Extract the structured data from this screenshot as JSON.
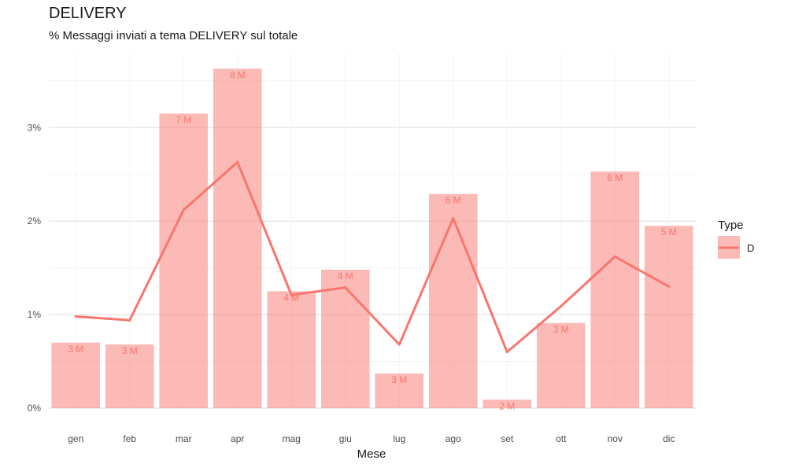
{
  "chart_data": {
    "type": "bar+line",
    "title": "DELIVERY",
    "subtitle": "% Messaggi inviati a tema DELIVERY sul totale",
    "xlabel": "Mese",
    "ylabel": "",
    "categories": [
      "gen",
      "feb",
      "mar",
      "apr",
      "mag",
      "giu",
      "lug",
      "ago",
      "set",
      "ott",
      "nov",
      "dic"
    ],
    "bars": {
      "name": "D",
      "values": [
        0.7,
        0.68,
        3.15,
        3.63,
        1.25,
        1.48,
        0.37,
        2.29,
        0.09,
        0.91,
        2.53,
        1.95
      ],
      "labels": [
        "3 M",
        "3 M",
        "7 M",
        "8 M",
        "4 M",
        "4 M",
        "3 M",
        "6 M",
        "2 M",
        "3 M",
        "6 M",
        "5 M"
      ]
    },
    "line": {
      "name": "D",
      "values": [
        0.98,
        0.94,
        2.12,
        2.63,
        1.21,
        1.29,
        0.68,
        2.03,
        0.6,
        1.09,
        1.62,
        1.3
      ]
    },
    "y_ticks": [
      0,
      1,
      2,
      3
    ],
    "y_tick_labels": [
      "0%",
      "1%",
      "2%",
      "3%"
    ],
    "ylim": [
      0,
      3.65
    ],
    "grid": true,
    "legend": {
      "title": "Type",
      "entries": [
        "D"
      ],
      "position": "right"
    },
    "colors": {
      "bar": "#f8766d",
      "line": "#f8766d",
      "grid": "#dedede"
    }
  }
}
